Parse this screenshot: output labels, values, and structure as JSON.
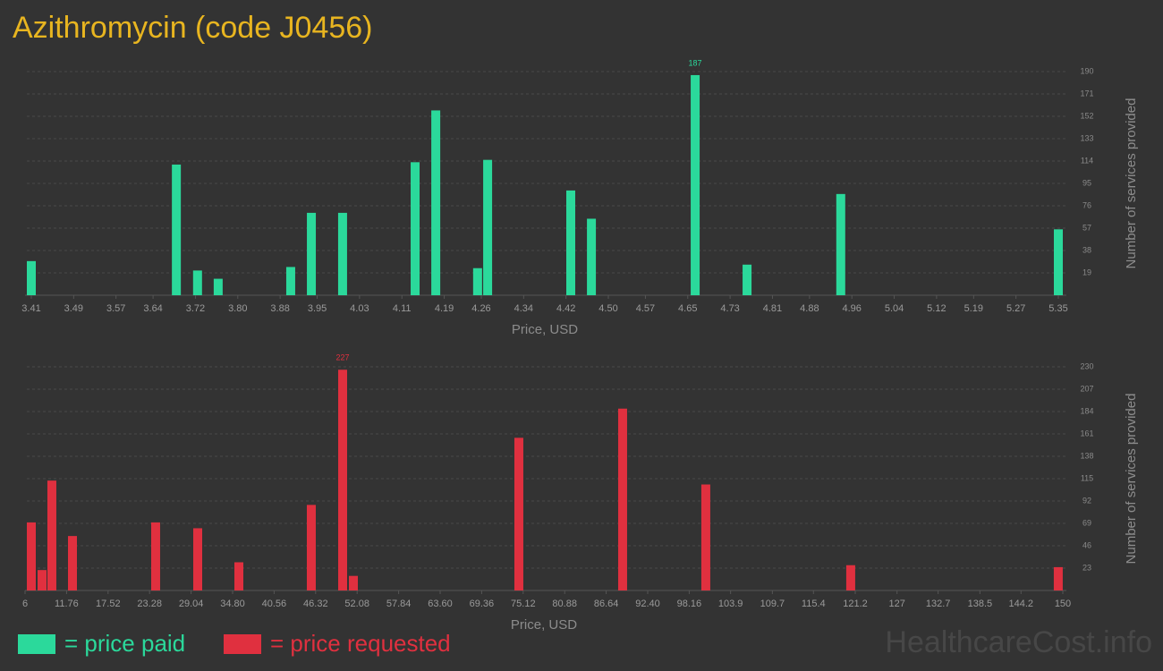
{
  "title": "Azithromycin (code J0456)",
  "watermark": "HealthcareCost.info",
  "chart_data": [
    {
      "type": "bar",
      "x_label": "Price, USD",
      "y_label": "Number of services provided",
      "grid": true,
      "max_label": true,
      "x": [
        3.41,
        3.684,
        3.724,
        3.763,
        3.9,
        3.939,
        3.998,
        4.135,
        4.174,
        4.253,
        4.272,
        4.429,
        4.468,
        4.664,
        4.762,
        4.939,
        5.35
      ],
      "series": [
        {
          "name": "= price paid",
          "color": "#2bd99b",
          "values": [
            29,
            111,
            21,
            14,
            24,
            70,
            70,
            113,
            157,
            23,
            115,
            89,
            65,
            187,
            26,
            86,
            56
          ]
        }
      ],
      "xlim": [
        3.41,
        5.35
      ],
      "xticks": [
        3.41,
        3.49,
        3.57,
        3.64,
        3.72,
        {
          "value": 3.8,
          "label": "3.80"
        },
        3.88,
        3.95,
        4.03,
        4.11,
        4.19,
        4.26,
        4.34,
        4.42,
        {
          "value": 4.5,
          "label": "4.50"
        },
        4.57,
        4.65,
        4.73,
        4.81,
        4.88,
        4.96,
        5.04,
        5.12,
        5.19,
        5.27,
        5.35
      ],
      "ylim": [
        0,
        190
      ],
      "yticks": [
        19,
        38,
        57,
        76,
        95,
        114,
        133,
        152,
        171,
        190
      ]
    },
    {
      "type": "bar",
      "x_label": "Price, USD",
      "y_label": "Number of services provided",
      "grid": true,
      "max_label": true,
      "x": [
        6.87,
        8.36,
        9.72,
        12.58,
        24.12,
        29.96,
        35.67,
        45.72,
        50.07,
        51.56,
        74.52,
        88.92,
        100.46,
        120.57,
        149.37
      ],
      "series": [
        {
          "name": "= price requested",
          "color": "#e0303f",
          "values": [
            70,
            21,
            113,
            56,
            70,
            64,
            29,
            88,
            227,
            15,
            157,
            187,
            109,
            26,
            24
          ]
        }
      ],
      "xlim": [
        6,
        150
      ],
      "xticks": [
        6,
        11.76,
        17.52,
        23.28,
        29.04,
        {
          "value": 34.8,
          "label": "34.80"
        },
        40.56,
        46.32,
        52.08,
        57.84,
        {
          "value": 63.6,
          "label": "63.60"
        },
        69.36,
        75.12,
        80.88,
        86.64,
        {
          "value": 92.4,
          "label": "92.40"
        },
        98.16,
        103.9,
        109.7,
        115.4,
        121.2,
        127,
        132.7,
        138.5,
        144.2,
        150
      ],
      "ylim": [
        0,
        230
      ],
      "yticks": [
        23,
        46,
        69,
        92,
        115,
        138,
        161,
        184,
        207,
        230
      ]
    }
  ]
}
